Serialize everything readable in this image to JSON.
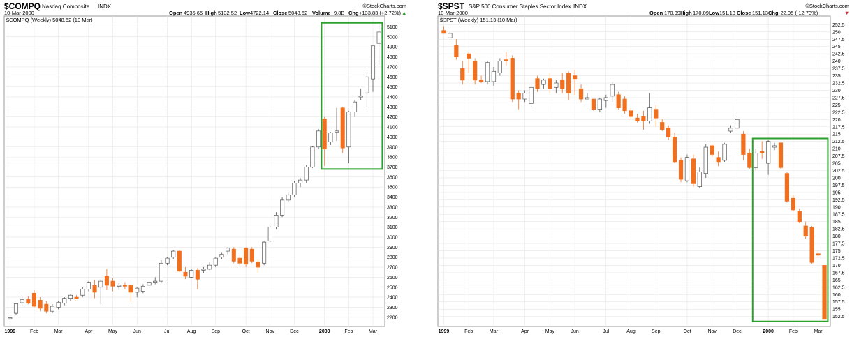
{
  "colors": {
    "up": "#ffffff",
    "down": "#f07020",
    "flat": "#8a95a3",
    "box": "#2ca02c",
    "grid": "#e6e6e6",
    "frame": "#9a9a9a",
    "chg_up": "#2ca02c",
    "chg_down": "#d62728"
  },
  "watermark": "©StockCharts.com",
  "charts": [
    {
      "symbol": "$COMPQ",
      "name": "Nasdaq Composite",
      "exchange": "INDX",
      "date": "10-Mar-2000",
      "legend": "$COMPQ (Weekly) 5048.62 (10 Mar)",
      "open_label": "Open",
      "open": "4935.65",
      "high_label": "High",
      "high": "5132.52",
      "low_label": "Low",
      "low": "4722.14",
      "close_label": "Close",
      "close": "5048.62",
      "volume_label": "Volume",
      "volume": "9.8B",
      "chg_label": "Chg",
      "chg": "+133.83 (+2.72%)",
      "chg_arrow": "▲"
    },
    {
      "symbol": "$SPST",
      "name": "S&P 500 Consumer Staples Sector Index",
      "exchange": "INDX",
      "date": "10-Mar-2000",
      "legend": "$SPST (Weekly) 151.13 (10 Mar)",
      "open_label": "Open",
      "open": "170.09",
      "high_label": "High",
      "high": "170.09",
      "low_label": "Low",
      "low": "151.13",
      "close_label": "Close",
      "close": "151.13",
      "chg_label": "Chg",
      "chg": "-22.05 (-12.73%)",
      "chg_arrow": "▼"
    }
  ],
  "chart_data": [
    {
      "type": "candlestick",
      "title": "$COMPQ Nasdaq Composite (Weekly)",
      "ylim": [
        2150,
        5180
      ],
      "y_ticks": [
        2200,
        2300,
        2400,
        2500,
        2600,
        2700,
        2800,
        2900,
        3000,
        3100,
        3200,
        3300,
        3400,
        3500,
        3600,
        3700,
        3800,
        3900,
        4000,
        4100,
        4200,
        4300,
        4400,
        4500,
        4600,
        4700,
        4800,
        4900,
        5000,
        5100
      ],
      "x_labels": [
        {
          "i": 0,
          "t": "1999",
          "bold": true
        },
        {
          "i": 4,
          "t": "Feb"
        },
        {
          "i": 8,
          "t": "Mar"
        },
        {
          "i": 13,
          "t": "Apr"
        },
        {
          "i": 17,
          "t": "May"
        },
        {
          "i": 21,
          "t": "Jun"
        },
        {
          "i": 26,
          "t": "Jul"
        },
        {
          "i": 30,
          "t": "Aug"
        },
        {
          "i": 34,
          "t": "Sep"
        },
        {
          "i": 39,
          "t": "Oct"
        },
        {
          "i": 43,
          "t": "Nov"
        },
        {
          "i": 47,
          "t": "Dec"
        },
        {
          "i": 52,
          "t": "2000",
          "bold": true
        },
        {
          "i": 56,
          "t": "Feb"
        },
        {
          "i": 60,
          "t": "Mar"
        }
      ],
      "n_slots": 62,
      "candles": [
        {
          "o": 2185,
          "h": 2210,
          "l": 2170,
          "c": 2195
        },
        {
          "o": 2240,
          "h": 2340,
          "l": 2225,
          "c": 2335
        },
        {
          "o": 2345,
          "h": 2420,
          "l": 2310,
          "c": 2375
        },
        {
          "o": 2380,
          "h": 2410,
          "l": 2330,
          "c": 2340
        },
        {
          "o": 2440,
          "h": 2470,
          "l": 2300,
          "c": 2310
        },
        {
          "o": 2370,
          "h": 2400,
          "l": 2260,
          "c": 2290
        },
        {
          "o": 2330,
          "h": 2360,
          "l": 2240,
          "c": 2260
        },
        {
          "o": 2260,
          "h": 2330,
          "l": 2240,
          "c": 2310
        },
        {
          "o": 2300,
          "h": 2360,
          "l": 2280,
          "c": 2350
        },
        {
          "o": 2340,
          "h": 2400,
          "l": 2320,
          "c": 2390
        },
        {
          "o": 2390,
          "h": 2430,
          "l": 2360,
          "c": 2420
        },
        {
          "o": 2400,
          "h": 2420,
          "l": 2380,
          "c": 2390
        },
        {
          "o": 2420,
          "h": 2500,
          "l": 2400,
          "c": 2480
        },
        {
          "o": 2480,
          "h": 2560,
          "l": 2460,
          "c": 2550
        },
        {
          "o": 2520,
          "h": 2570,
          "l": 2390,
          "c": 2450
        },
        {
          "o": 2500,
          "h": 2580,
          "l": 2330,
          "c": 2560
        },
        {
          "o": 2610,
          "h": 2680,
          "l": 2470,
          "c": 2520
        },
        {
          "o": 2560,
          "h": 2590,
          "l": 2460,
          "c": 2510
        },
        {
          "o": 2510,
          "h": 2540,
          "l": 2470,
          "c": 2520
        },
        {
          "o": 2520,
          "h": 2550,
          "l": 2480,
          "c": 2510
        },
        {
          "o": 2520,
          "h": 2530,
          "l": 2350,
          "c": 2450
        },
        {
          "o": 2450,
          "h": 2500,
          "l": 2400,
          "c": 2490
        },
        {
          "o": 2460,
          "h": 2530,
          "l": 2440,
          "c": 2510
        },
        {
          "o": 2520,
          "h": 2570,
          "l": 2490,
          "c": 2550
        },
        {
          "o": 2550,
          "h": 2600,
          "l": 2530,
          "c": 2560
        },
        {
          "o": 2560,
          "h": 2770,
          "l": 2540,
          "c": 2740
        },
        {
          "o": 2740,
          "h": 2800,
          "l": 2720,
          "c": 2790
        },
        {
          "o": 2800,
          "h": 2870,
          "l": 2780,
          "c": 2860
        },
        {
          "o": 2860,
          "h": 2870,
          "l": 2650,
          "c": 2660
        },
        {
          "o": 2650,
          "h": 2700,
          "l": 2580,
          "c": 2610
        },
        {
          "o": 2600,
          "h": 2680,
          "l": 2590,
          "c": 2670
        },
        {
          "o": 2670,
          "h": 2690,
          "l": 2480,
          "c": 2580
        },
        {
          "o": 2670,
          "h": 2700,
          "l": 2640,
          "c": 2680
        },
        {
          "o": 2680,
          "h": 2750,
          "l": 2670,
          "c": 2720
        },
        {
          "o": 2720,
          "h": 2800,
          "l": 2700,
          "c": 2790
        },
        {
          "o": 2800,
          "h": 2850,
          "l": 2780,
          "c": 2830
        },
        {
          "o": 2860,
          "h": 2900,
          "l": 2830,
          "c": 2890
        },
        {
          "o": 2880,
          "h": 2900,
          "l": 2740,
          "c": 2760
        },
        {
          "o": 2790,
          "h": 2820,
          "l": 2720,
          "c": 2740
        },
        {
          "o": 2890,
          "h": 2900,
          "l": 2700,
          "c": 2730
        },
        {
          "o": 2880,
          "h": 2900,
          "l": 2740,
          "c": 2760
        },
        {
          "o": 2750,
          "h": 2780,
          "l": 2640,
          "c": 2700
        },
        {
          "o": 2740,
          "h": 2960,
          "l": 2720,
          "c": 2950
        },
        {
          "o": 2960,
          "h": 3110,
          "l": 2950,
          "c": 3100
        },
        {
          "o": 3100,
          "h": 3250,
          "l": 3080,
          "c": 3220
        },
        {
          "o": 3220,
          "h": 3400,
          "l": 3200,
          "c": 3370
        },
        {
          "o": 3370,
          "h": 3450,
          "l": 3350,
          "c": 3420
        },
        {
          "o": 3420,
          "h": 3560,
          "l": 3400,
          "c": 3540
        },
        {
          "o": 3540,
          "h": 3590,
          "l": 3500,
          "c": 3570
        },
        {
          "o": 3570,
          "h": 3720,
          "l": 3540,
          "c": 3700
        },
        {
          "o": 3700,
          "h": 3910,
          "l": 3690,
          "c": 3900
        },
        {
          "o": 3900,
          "h": 4080,
          "l": 3880,
          "c": 4060
        },
        {
          "o": 4180,
          "h": 4200,
          "l": 3710,
          "c": 3880
        },
        {
          "o": 3950,
          "h": 4050,
          "l": 3920,
          "c": 4040
        },
        {
          "o": 4050,
          "h": 4290,
          "l": 3960,
          "c": 4060
        },
        {
          "o": 4290,
          "h": 4300,
          "l": 3840,
          "c": 3890
        },
        {
          "o": 3900,
          "h": 4260,
          "l": 3740,
          "c": 4250
        },
        {
          "o": 4250,
          "h": 4370,
          "l": 4200,
          "c": 4350
        },
        {
          "o": 4400,
          "h": 4480,
          "l": 4370,
          "c": 4410
        },
        {
          "o": 4440,
          "h": 4650,
          "l": 4300,
          "c": 4600
        },
        {
          "o": 4580,
          "h": 4910,
          "l": 4450,
          "c": 4910
        },
        {
          "o": 4935,
          "h": 5132,
          "l": 4722,
          "c": 5048
        }
      ],
      "highlight": {
        "from": 52,
        "to": 61,
        "y_top": 5140,
        "y_bottom": 3680
      }
    },
    {
      "type": "candlestick",
      "title": "$SPST S&P 500 Consumer Staples Sector Index (Weekly)",
      "ylim": [
        150.5,
        254.5
      ],
      "y_ticks": [
        152.5,
        155,
        157.5,
        160,
        162.5,
        165,
        167.5,
        170,
        172.5,
        175,
        177.5,
        180,
        182.5,
        185,
        187.5,
        190,
        192.5,
        195,
        197.5,
        200,
        202.5,
        205,
        207.5,
        210,
        212.5,
        215,
        217.5,
        220,
        222.5,
        225,
        227.5,
        230,
        232.5,
        235,
        237.5,
        240,
        242.5,
        245,
        247.5,
        250,
        252.5
      ],
      "x_labels": [
        {
          "i": 0,
          "t": "1999",
          "bold": true
        },
        {
          "i": 4,
          "t": "Feb"
        },
        {
          "i": 8,
          "t": "Mar"
        },
        {
          "i": 13,
          "t": "Apr"
        },
        {
          "i": 17,
          "t": "May"
        },
        {
          "i": 21,
          "t": "Jun"
        },
        {
          "i": 26,
          "t": "Jul"
        },
        {
          "i": 30,
          "t": "Aug"
        },
        {
          "i": 34,
          "t": "Sep"
        },
        {
          "i": 39,
          "t": "Oct"
        },
        {
          "i": 43,
          "t": "Nov"
        },
        {
          "i": 47,
          "t": "Dec"
        },
        {
          "i": 52,
          "t": "2000",
          "bold": true
        },
        {
          "i": 56,
          "t": "Feb"
        },
        {
          "i": 60,
          "t": "Mar"
        }
      ],
      "n_slots": 62,
      "candles": [
        {
          "o": 250.5,
          "h": 252,
          "l": 249.5,
          "c": 249.5
        },
        {
          "o": 248,
          "h": 251.5,
          "l": 246.5,
          "c": 249.5
        },
        {
          "o": 245.5,
          "h": 247.5,
          "l": 240.5,
          "c": 241.5
        },
        {
          "o": 237.5,
          "h": 240,
          "l": 232,
          "c": 233.5
        },
        {
          "o": 242.5,
          "h": 243,
          "l": 236,
          "c": 241
        },
        {
          "o": 240,
          "h": 241,
          "l": 232,
          "c": 233.5
        },
        {
          "o": 233.5,
          "h": 235,
          "l": 232.5,
          "c": 233
        },
        {
          "o": 233,
          "h": 240,
          "l": 232,
          "c": 239.5
        },
        {
          "o": 233,
          "h": 238,
          "l": 231.5,
          "c": 236.5
        },
        {
          "o": 236,
          "h": 241,
          "l": 235,
          "c": 240
        },
        {
          "o": 240.5,
          "h": 243,
          "l": 238.5,
          "c": 240
        },
        {
          "o": 241,
          "h": 242,
          "l": 226,
          "c": 227
        },
        {
          "o": 229,
          "h": 230,
          "l": 223.5,
          "c": 227
        },
        {
          "o": 227,
          "h": 230,
          "l": 226,
          "c": 229
        },
        {
          "o": 225.5,
          "h": 232,
          "l": 224.5,
          "c": 231
        },
        {
          "o": 234,
          "h": 235,
          "l": 229.5,
          "c": 230.5
        },
        {
          "o": 232,
          "h": 234,
          "l": 230.5,
          "c": 233.5
        },
        {
          "o": 234,
          "h": 236,
          "l": 229,
          "c": 230.5
        },
        {
          "o": 231,
          "h": 233.5,
          "l": 229,
          "c": 232.5
        },
        {
          "o": 233.5,
          "h": 236,
          "l": 229,
          "c": 230.5
        },
        {
          "o": 236,
          "h": 236.5,
          "l": 226.5,
          "c": 229
        },
        {
          "o": 235,
          "h": 237,
          "l": 228.5,
          "c": 234
        },
        {
          "o": 230.5,
          "h": 232,
          "l": 226,
          "c": 227
        },
        {
          "o": 227,
          "h": 229,
          "l": 227,
          "c": 227.5
        },
        {
          "o": 227,
          "h": 227,
          "l": 223,
          "c": 223.5
        },
        {
          "o": 223.5,
          "h": 227.5,
          "l": 222.5,
          "c": 227
        },
        {
          "o": 226.5,
          "h": 228.5,
          "l": 224,
          "c": 227.5
        },
        {
          "o": 228,
          "h": 233,
          "l": 226,
          "c": 232
        },
        {
          "o": 228.5,
          "h": 229.5,
          "l": 223.5,
          "c": 224
        },
        {
          "o": 227,
          "h": 228,
          "l": 222,
          "c": 223
        },
        {
          "o": 223,
          "h": 224,
          "l": 220,
          "c": 221
        },
        {
          "o": 220.5,
          "h": 222,
          "l": 219,
          "c": 219.5
        },
        {
          "o": 221,
          "h": 223,
          "l": 216.5,
          "c": 219.5
        },
        {
          "o": 219.5,
          "h": 229,
          "l": 218.5,
          "c": 224
        },
        {
          "o": 223.5,
          "h": 225,
          "l": 217.5,
          "c": 220.5
        },
        {
          "o": 219,
          "h": 220,
          "l": 216,
          "c": 216.5
        },
        {
          "o": 217,
          "h": 218,
          "l": 213,
          "c": 214
        },
        {
          "o": 214,
          "h": 215.5,
          "l": 205,
          "c": 205.5
        },
        {
          "o": 206,
          "h": 207,
          "l": 198.5,
          "c": 199.5
        },
        {
          "o": 199,
          "h": 208,
          "l": 198.5,
          "c": 207
        },
        {
          "o": 206.5,
          "h": 208,
          "l": 197,
          "c": 198
        },
        {
          "o": 197,
          "h": 203.5,
          "l": 196.5,
          "c": 202
        },
        {
          "o": 201.5,
          "h": 211.5,
          "l": 200,
          "c": 210.5
        },
        {
          "o": 211,
          "h": 211.5,
          "l": 207,
          "c": 208
        },
        {
          "o": 207,
          "h": 209,
          "l": 204,
          "c": 205.5
        },
        {
          "o": 206,
          "h": 212,
          "l": 205.5,
          "c": 211.5
        },
        {
          "o": 216,
          "h": 218,
          "l": 215.5,
          "c": 217
        },
        {
          "o": 217,
          "h": 221,
          "l": 216.5,
          "c": 220
        },
        {
          "o": 215,
          "h": 216,
          "l": 206,
          "c": 208
        },
        {
          "o": 208.5,
          "h": 210,
          "l": 203,
          "c": 203.5
        },
        {
          "o": 203.5,
          "h": 210,
          "l": 202.5,
          "c": 208.5
        },
        {
          "o": 209,
          "h": 212.5,
          "l": 206.5,
          "c": 208.5
        },
        {
          "o": 205,
          "h": 213,
          "l": 201,
          "c": 212.5
        },
        {
          "o": 210.5,
          "h": 212,
          "l": 209.5,
          "c": 211
        },
        {
          "o": 212,
          "h": 212,
          "l": 203,
          "c": 203.5
        },
        {
          "o": 201.5,
          "h": 202,
          "l": 191.5,
          "c": 192
        },
        {
          "o": 193,
          "h": 194,
          "l": 188.5,
          "c": 189
        },
        {
          "o": 188.5,
          "h": 189.5,
          "l": 184.5,
          "c": 185
        },
        {
          "o": 183.5,
          "h": 185,
          "l": 179,
          "c": 180
        },
        {
          "o": 183,
          "h": 183.5,
          "l": 170.5,
          "c": 171
        },
        {
          "o": 174,
          "h": 175,
          "l": 172.5,
          "c": 173.5
        },
        {
          "o": 170,
          "h": 170,
          "l": 151.5,
          "c": 151.5
        }
      ],
      "highlight": {
        "from": 50,
        "to": 61,
        "y_top": 213.5,
        "y_bottom": 150.8
      }
    }
  ]
}
